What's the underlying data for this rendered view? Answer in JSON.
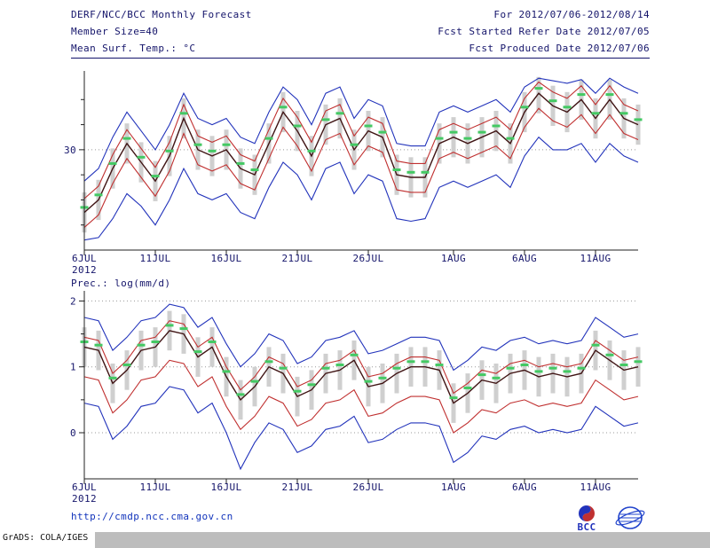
{
  "header": {
    "line1_left": "DERF/NCC/BCC Monthly Forecast",
    "line2_left": "Member Size=40",
    "line3_left": "Mean Surf. Temp.: °C",
    "line1_right": "For 2012/07/06-2012/08/14",
    "line2_right": "Fcst Started Refer Date 2012/07/05",
    "line3_right": "Fcst Produced Date 2012/07/06"
  },
  "footer": {
    "url": "http://cmdp.ncc.cma.gov.cn",
    "credit": "GrADS: COLA/IGES",
    "bcc_logo_label": "BCC"
  },
  "colors": {
    "text": "#14146a",
    "axis": "#222222",
    "grid": "#9a9a9a",
    "blue": "#2233bb",
    "red": "#c03030",
    "mean": "#401515",
    "green": "#44c964",
    "band": "#cfcfcf",
    "link": "#1133bb"
  },
  "chart_data": [
    {
      "type": "line",
      "title": "Mean Surf. Temp.: °C",
      "xlabel": "",
      "ylabel": "",
      "ylim": [
        22,
        36
      ],
      "grid": "dotted horizontal at labeled ticks",
      "legend": "none",
      "n_points": 40,
      "x_dates": [
        "6JUL",
        "7JUL",
        "8JUL",
        "9JUL",
        "10JUL",
        "11JUL",
        "12JUL",
        "13JUL",
        "14JUL",
        "15JUL",
        "16JUL",
        "17JUL",
        "18JUL",
        "19JUL",
        "20JUL",
        "21JUL",
        "22JUL",
        "23JUL",
        "24JUL",
        "25JUL",
        "26JUL",
        "27JUL",
        "28JUL",
        "29JUL",
        "30JUL",
        "31JUL",
        "1AUG",
        "2AUG",
        "3AUG",
        "4AUG",
        "5AUG",
        "6AUG",
        "7AUG",
        "8AUG",
        "9AUG",
        "10AUG",
        "11AUG",
        "12AUG",
        "13AUG",
        "14AUG"
      ],
      "x_tick_positions": [
        0,
        5,
        10,
        15,
        20,
        26,
        31,
        36
      ],
      "x_tick_labels": [
        "6JUL",
        "11JUL",
        "16JUL",
        "21JUL",
        "26JUL",
        "1AUG",
        "6AUG",
        "11AUG"
      ],
      "x_sublabel": "2012",
      "yticks_major": [
        {
          "value": 30,
          "label": "30"
        }
      ],
      "yticks_minor": [
        24,
        26,
        28,
        32,
        34
      ],
      "series": [
        {
          "name": "ensemble-max",
          "color_key": "blue",
          "values": [
            27.5,
            28.5,
            31.0,
            33.0,
            31.5,
            30.0,
            32.0,
            34.5,
            32.5,
            32.0,
            32.5,
            31.0,
            30.5,
            33.0,
            35.0,
            34.0,
            32.0,
            34.5,
            35.0,
            32.5,
            34.0,
            33.5,
            30.5,
            30.3,
            30.3,
            33.0,
            33.5,
            33.0,
            33.5,
            34.0,
            33.0,
            35.0,
            35.7,
            35.5,
            35.3,
            35.6,
            34.5,
            35.7,
            35.0,
            34.5
          ]
        },
        {
          "name": "upper-quartile",
          "color_key": "red",
          "values": [
            26.1,
            27.1,
            29.6,
            31.6,
            30.1,
            28.6,
            30.6,
            33.6,
            31.1,
            30.6,
            31.1,
            29.6,
            29.1,
            31.6,
            34.1,
            32.6,
            30.6,
            33.1,
            33.6,
            31.1,
            32.6,
            32.1,
            29.1,
            28.9,
            28.9,
            31.6,
            32.1,
            31.6,
            32.1,
            32.6,
            31.6,
            34.1,
            35.4,
            34.6,
            34.1,
            35.1,
            33.6,
            35.1,
            33.6,
            33.1
          ]
        },
        {
          "name": "lower-quartile",
          "color_key": "red",
          "values": [
            23.8,
            24.8,
            27.3,
            29.3,
            27.8,
            26.3,
            28.3,
            31.3,
            28.8,
            28.3,
            28.8,
            27.3,
            26.8,
            29.3,
            31.8,
            30.3,
            28.3,
            30.8,
            31.3,
            28.8,
            30.3,
            29.8,
            26.8,
            26.6,
            26.6,
            29.3,
            29.8,
            29.3,
            29.8,
            30.3,
            29.3,
            31.8,
            33.3,
            32.3,
            31.8,
            32.8,
            31.3,
            32.8,
            31.3,
            30.8
          ]
        },
        {
          "name": "ensemble-min",
          "color_key": "blue",
          "values": [
            22.8,
            23.0,
            24.5,
            26.5,
            25.5,
            24.0,
            26.0,
            28.5,
            26.5,
            26.0,
            26.5,
            25.0,
            24.5,
            27.0,
            29.0,
            28.0,
            26.0,
            28.5,
            29.0,
            26.5,
            28.0,
            27.5,
            24.5,
            24.3,
            24.5,
            27.0,
            27.5,
            27.0,
            27.5,
            28.0,
            27.0,
            29.5,
            31.0,
            30.0,
            30.0,
            30.5,
            29.0,
            30.5,
            29.5,
            29.0
          ]
        },
        {
          "name": "ensemble-mean",
          "color_key": "mean",
          "values": [
            25.0,
            26.0,
            28.5,
            30.5,
            29.0,
            27.5,
            29.5,
            32.5,
            30.0,
            29.5,
            30.0,
            28.5,
            28.0,
            30.5,
            33.0,
            31.5,
            29.5,
            32.0,
            32.5,
            30.0,
            31.5,
            31.0,
            28.0,
            27.8,
            27.8,
            30.5,
            31.0,
            30.5,
            31.0,
            31.5,
            30.5,
            33.0,
            34.5,
            33.5,
            33.0,
            34.0,
            32.5,
            34.0,
            32.5,
            32.0
          ]
        }
      ],
      "markers": {
        "name": "median-marker",
        "color_key": "green",
        "values": [
          25.4,
          26.4,
          28.9,
          30.9,
          29.4,
          27.9,
          29.9,
          32.9,
          30.4,
          29.9,
          30.4,
          28.9,
          28.4,
          30.9,
          33.4,
          31.9,
          29.9,
          32.4,
          32.9,
          30.4,
          31.9,
          31.4,
          28.4,
          28.2,
          28.2,
          30.9,
          31.4,
          30.9,
          31.4,
          31.9,
          30.9,
          33.4,
          34.9,
          33.9,
          33.4,
          34.4,
          32.9,
          34.4,
          32.9,
          32.4
        ]
      },
      "band": {
        "color_key": "band",
        "low": [
          23.4,
          24.4,
          26.9,
          28.9,
          27.4,
          25.9,
          27.9,
          30.9,
          28.4,
          27.9,
          28.4,
          26.9,
          26.4,
          28.9,
          31.4,
          29.9,
          27.9,
          30.4,
          30.9,
          28.4,
          29.9,
          29.4,
          26.4,
          26.2,
          26.2,
          28.9,
          29.4,
          28.9,
          29.4,
          29.9,
          28.9,
          31.4,
          32.9,
          31.9,
          31.4,
          32.4,
          30.9,
          32.4,
          30.9,
          30.4
        ],
        "high": [
          26.6,
          27.6,
          30.1,
          32.1,
          30.6,
          29.1,
          31.1,
          34.1,
          31.6,
          31.1,
          31.6,
          30.1,
          29.6,
          32.1,
          34.6,
          33.1,
          31.1,
          33.6,
          34.1,
          31.6,
          33.1,
          32.6,
          29.6,
          29.4,
          29.4,
          32.1,
          32.6,
          32.1,
          32.6,
          33.1,
          32.1,
          34.6,
          35.8,
          35.1,
          34.6,
          35.6,
          34.1,
          35.6,
          34.1,
          33.6
        ]
      }
    },
    {
      "type": "line",
      "title": "Prec.: log(mm/d)",
      "xlabel": "",
      "ylabel": "",
      "ylim": [
        -0.7,
        2.1
      ],
      "grid": "dotted horizontal at labeled ticks",
      "legend": "none",
      "n_points": 40,
      "x_dates": [
        "6JUL",
        "7JUL",
        "8JUL",
        "9JUL",
        "10JUL",
        "11JUL",
        "12JUL",
        "13JUL",
        "14JUL",
        "15JUL",
        "16JUL",
        "17JUL",
        "18JUL",
        "19JUL",
        "20JUL",
        "21JUL",
        "22JUL",
        "23JUL",
        "24JUL",
        "25JUL",
        "26JUL",
        "27JUL",
        "28JUL",
        "29JUL",
        "30JUL",
        "31JUL",
        "1AUG",
        "2AUG",
        "3AUG",
        "4AUG",
        "5AUG",
        "6AUG",
        "7AUG",
        "8AUG",
        "9AUG",
        "10AUG",
        "11AUG",
        "12AUG",
        "13AUG",
        "14AUG"
      ],
      "x_tick_positions": [
        0,
        5,
        10,
        15,
        20,
        26,
        31,
        36
      ],
      "x_tick_labels": [
        "6JUL",
        "11JUL",
        "16JUL",
        "21JUL",
        "26JUL",
        "1AUG",
        "6AUG",
        "11AUG"
      ],
      "x_sublabel": "2012",
      "yticks_major": [
        {
          "value": 0,
          "label": "0"
        },
        {
          "value": 1,
          "label": "1"
        },
        {
          "value": 2,
          "label": "2"
        }
      ],
      "yticks_minor": [
        0.5,
        1.5
      ],
      "series": [
        {
          "name": "ensemble-max",
          "color_key": "blue",
          "values": [
            1.75,
            1.7,
            1.25,
            1.45,
            1.7,
            1.75,
            1.95,
            1.9,
            1.6,
            1.75,
            1.35,
            1.0,
            1.2,
            1.5,
            1.4,
            1.05,
            1.15,
            1.4,
            1.45,
            1.55,
            1.2,
            1.25,
            1.35,
            1.45,
            1.45,
            1.4,
            0.95,
            1.1,
            1.3,
            1.25,
            1.4,
            1.45,
            1.35,
            1.4,
            1.35,
            1.4,
            1.75,
            1.6,
            1.45,
            1.5
          ]
        },
        {
          "name": "upper-quartile",
          "color_key": "red",
          "values": [
            1.45,
            1.4,
            0.9,
            1.1,
            1.4,
            1.45,
            1.7,
            1.65,
            1.3,
            1.45,
            1.0,
            0.65,
            0.85,
            1.15,
            1.05,
            0.7,
            0.8,
            1.05,
            1.1,
            1.25,
            0.85,
            0.9,
            1.05,
            1.15,
            1.15,
            1.1,
            0.6,
            0.75,
            0.95,
            0.9,
            1.05,
            1.1,
            1.0,
            1.05,
            1.0,
            1.05,
            1.4,
            1.25,
            1.1,
            1.15
          ]
        },
        {
          "name": "lower-quartile",
          "color_key": "red",
          "values": [
            0.85,
            0.8,
            0.3,
            0.5,
            0.8,
            0.85,
            1.1,
            1.05,
            0.7,
            0.85,
            0.4,
            0.05,
            0.25,
            0.55,
            0.45,
            0.1,
            0.2,
            0.45,
            0.5,
            0.65,
            0.25,
            0.3,
            0.45,
            0.55,
            0.55,
            0.5,
            0.0,
            0.15,
            0.35,
            0.3,
            0.45,
            0.5,
            0.4,
            0.45,
            0.4,
            0.45,
            0.8,
            0.65,
            0.5,
            0.55
          ]
        },
        {
          "name": "ensemble-min",
          "color_key": "blue",
          "values": [
            0.45,
            0.4,
            -0.1,
            0.1,
            0.4,
            0.45,
            0.7,
            0.65,
            0.3,
            0.45,
            0.0,
            -0.55,
            -0.15,
            0.15,
            0.05,
            -0.3,
            -0.2,
            0.05,
            0.1,
            0.25,
            -0.15,
            -0.1,
            0.05,
            0.15,
            0.15,
            0.1,
            -0.45,
            -0.3,
            -0.05,
            -0.1,
            0.05,
            0.1,
            0.0,
            0.05,
            0.0,
            0.05,
            0.4,
            0.25,
            0.1,
            0.15
          ]
        },
        {
          "name": "ensemble-mean",
          "color_key": "mean",
          "values": [
            1.3,
            1.25,
            0.75,
            0.95,
            1.25,
            1.3,
            1.55,
            1.5,
            1.15,
            1.3,
            0.85,
            0.5,
            0.7,
            1.0,
            0.9,
            0.55,
            0.65,
            0.9,
            0.95,
            1.1,
            0.7,
            0.75,
            0.9,
            1.0,
            1.0,
            0.95,
            0.45,
            0.6,
            0.8,
            0.75,
            0.9,
            0.95,
            0.85,
            0.9,
            0.85,
            0.9,
            1.25,
            1.1,
            0.95,
            1.0
          ]
        }
      ],
      "markers": {
        "name": "median-marker",
        "color_key": "green",
        "values": [
          1.38,
          1.33,
          0.83,
          1.03,
          1.33,
          1.38,
          1.63,
          1.58,
          1.23,
          1.38,
          0.93,
          0.58,
          0.78,
          1.08,
          0.98,
          0.63,
          0.73,
          0.98,
          1.03,
          1.18,
          0.78,
          0.83,
          0.98,
          1.08,
          1.08,
          1.03,
          0.53,
          0.68,
          0.88,
          0.83,
          0.98,
          1.03,
          0.93,
          0.98,
          0.93,
          0.98,
          1.33,
          1.18,
          1.03,
          1.08
        ]
      },
      "band": {
        "color_key": "band",
        "low": [
          1.0,
          0.95,
          0.45,
          0.65,
          0.95,
          1.0,
          1.25,
          1.2,
          0.85,
          1.0,
          0.55,
          0.2,
          0.4,
          0.7,
          0.6,
          0.25,
          0.35,
          0.6,
          0.65,
          0.8,
          0.4,
          0.45,
          0.6,
          0.7,
          0.7,
          0.65,
          0.15,
          0.3,
          0.5,
          0.45,
          0.6,
          0.65,
          0.55,
          0.6,
          0.55,
          0.6,
          0.95,
          0.8,
          0.65,
          0.7
        ],
        "high": [
          1.6,
          1.55,
          1.05,
          1.25,
          1.55,
          1.6,
          1.85,
          1.8,
          1.45,
          1.6,
          1.15,
          0.8,
          1.0,
          1.3,
          1.2,
          0.85,
          0.95,
          1.2,
          1.25,
          1.4,
          1.0,
          1.05,
          1.2,
          1.3,
          1.3,
          1.25,
          0.75,
          0.9,
          1.1,
          1.05,
          1.2,
          1.25,
          1.15,
          1.2,
          1.15,
          1.2,
          1.55,
          1.4,
          1.25,
          1.3
        ]
      }
    }
  ]
}
